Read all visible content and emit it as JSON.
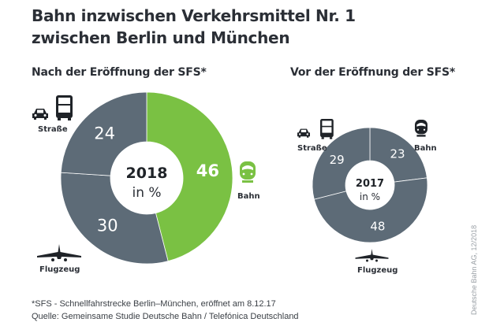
{
  "title": {
    "line1": "Bahn inzwischen Verkehrsmittel Nr. 1",
    "line2": "zwischen Berlin und München"
  },
  "colors": {
    "bahn_2018": "#7ac143",
    "grey": "#5d6b77",
    "separator": "#ffffff",
    "text_dark": "#2b2f36"
  },
  "chart_data": [
    {
      "type": "pie",
      "variant": "donut",
      "subtitle": "Nach der Eröffnung der SFS*",
      "center_label": "2018",
      "center_unit": "in %",
      "categories": [
        "Bahn",
        "Flugzeug",
        "Straße"
      ],
      "values": [
        46,
        30,
        24
      ],
      "highlight": "Bahn",
      "start": "top",
      "direction": "clockwise"
    },
    {
      "type": "pie",
      "variant": "donut",
      "subtitle": "Vor der Eröffnung der SFS*",
      "center_label": "2017",
      "center_unit": "in %",
      "categories": [
        "Bahn",
        "Flugzeug",
        "Straße"
      ],
      "values": [
        23,
        48,
        29
      ],
      "highlight": null,
      "start": "top",
      "direction": "clockwise"
    }
  ],
  "icons": {
    "road": "car-bus-icon",
    "rail": "train-icon",
    "air": "airplane-icon"
  },
  "legend_labels": {
    "road": "Straße",
    "rail": "Bahn",
    "air": "Flugzeug"
  },
  "footnote": {
    "line1": "*SFS - Schnellfahrstrecke Berlin–München, eröffnet am 8.12.17",
    "line2": "Quelle: Gemeinsame Studie Deutsche Bahn / Telefónica Deutschland"
  },
  "credit": "Deutsche Bahn AG, 12/2018"
}
